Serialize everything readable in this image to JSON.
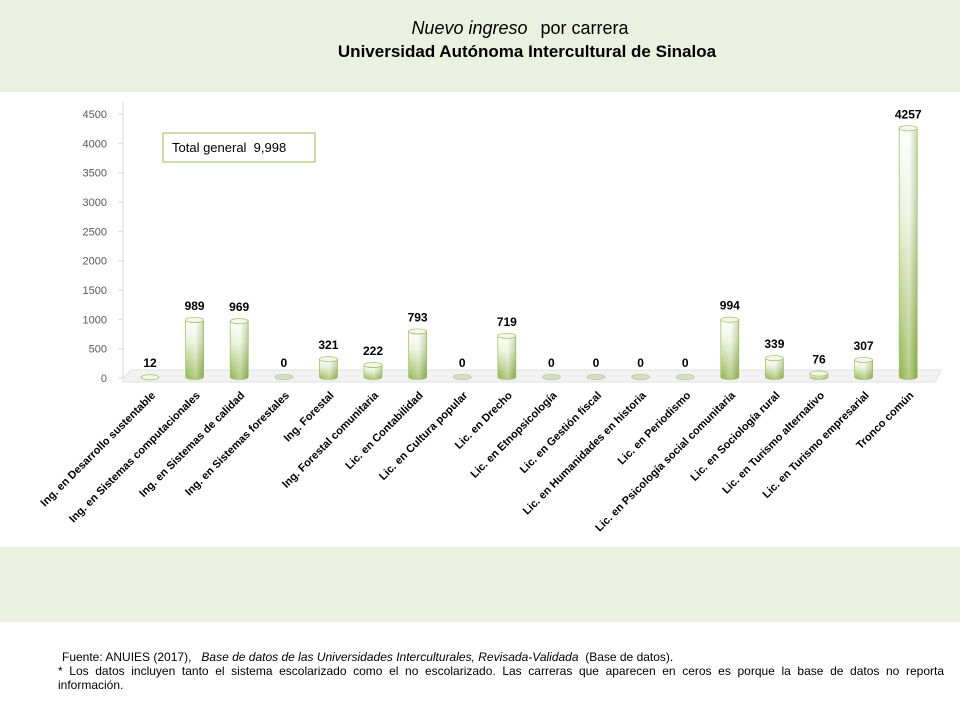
{
  "chart_data": {
    "type": "bar",
    "title": "Nuevo ingreso",
    "title_suffix": "por carrera",
    "subtitle": "Universidad Autónoma Intercultural de Sinaloa",
    "categories": [
      "Ing. en Desarrollo sustentable",
      "Ing. en Sistemas computacionales",
      "Ing. en Sistemas de calidad",
      "Ing. en Sistemas forestales",
      "Ing. Forestal",
      "Ing. Forestal comunitaria",
      "Lic. en Contabilidad",
      "Lic. en Cultura popular",
      "Lic. en Drecho",
      "Lic. en Etnopsicología",
      "Lic. en Gestión fiscal",
      "Lic. en Humanidades en historia",
      "Lic. en Periodismo",
      "Lic. en Psicología social comunitaria",
      "Lic. en Sociología rural",
      "Lic. en Turismo alternativo",
      "Lic. en Turismo empresarial",
      "Tronco común"
    ],
    "values": [
      12,
      989,
      969,
      0,
      321,
      222,
      793,
      0,
      719,
      0,
      0,
      0,
      0,
      994,
      339,
      76,
      307,
      4257
    ],
    "ylim": [
      0,
      4500
    ],
    "yticks": [
      0,
      500,
      1000,
      1500,
      2000,
      2500,
      3000,
      3500,
      4000,
      4500
    ],
    "grid": false,
    "annotation": "Total general  9,998",
    "bar_color_top": "#ffffff",
    "bar_color_bottom": "#8fb24a"
  },
  "footer": {
    "source_prefix": "Fuente: ANUIES (2017),",
    "source_title": "Base de datos de las Universidades  Interculturales, Revisada-Validada",
    "source_suffix": "(Base de datos).",
    "note_line1": "* Los datos incluyen tanto el sistema escolarizado como el no escolarizado. Las carreras que aparecen en ceros es porque la base de datos no reporta",
    "note_line2": "información."
  }
}
